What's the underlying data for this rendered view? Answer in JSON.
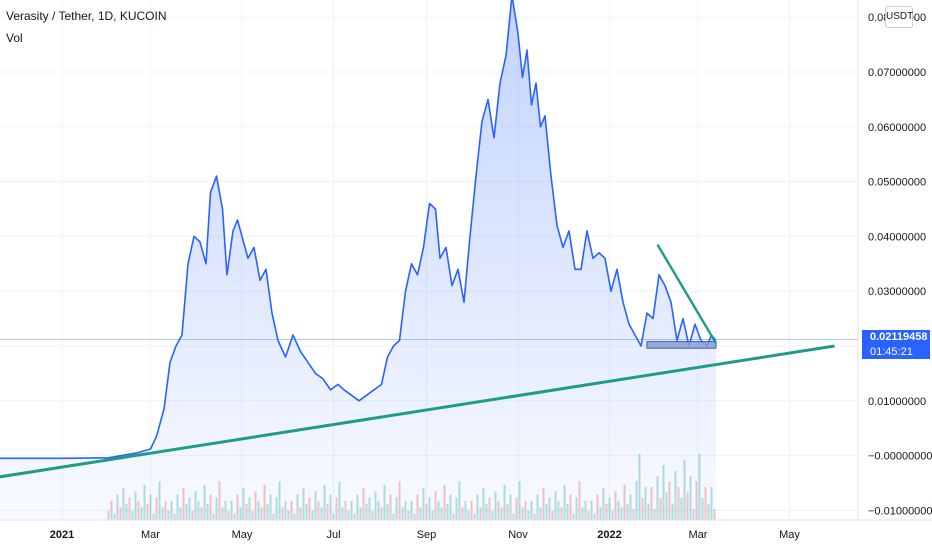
{
  "header": {
    "title": "Verasity / Tether, 1D, KUCOIN",
    "indicator": "Vol"
  },
  "price_axis": {
    "currency": "USDT",
    "current_price": "0.02119458",
    "countdown": "01:45:21"
  },
  "colors": {
    "line": "#2962ff",
    "area": "#2962ff",
    "trendline": "#1e9c86",
    "vol_up": "#26a69a",
    "vol_down": "#ef5350",
    "price_tag": "#2962ff",
    "support_box": "#8a9fd6"
  },
  "chart_data": {
    "type": "area",
    "title": "Verasity / Tether, 1D, KUCOIN",
    "xlabel": "",
    "ylabel": "",
    "ylim": [
      -0.0125,
      0.0845
    ],
    "grid": true,
    "x_ticks": [
      "2021",
      "Mar",
      "May",
      "Jul",
      "Sep",
      "Nov",
      "2022",
      "Mar",
      "May"
    ],
    "x_tick_dates": [
      "2021-01-01",
      "2021-03-01",
      "2021-05-01",
      "2021-07-01",
      "2021-09-01",
      "2021-11-01",
      "2022-01-01",
      "2022-03-01",
      "2022-05-01"
    ],
    "y_ticks": [
      0.08,
      0.07,
      0.06,
      0.05,
      0.04,
      0.03,
      0.02,
      0.01,
      0.0,
      -0.01
    ],
    "y_tick_labels": [
      "0.08000000",
      "0.07000000",
      "0.06000000",
      "0.05000000",
      "0.04000000",
      "0.03000000",
      "0.02000000",
      "0.01000000",
      "−0.00000000",
      "−0.01000000"
    ],
    "series": [
      {
        "x": [
          "2020-11-06",
          "2020-12-01",
          "2021-01-01",
          "2021-02-01",
          "2021-02-20",
          "2021-03-01",
          "2021-03-05",
          "2021-03-10",
          "2021-03-14",
          "2021-03-18",
          "2021-03-22",
          "2021-03-26",
          "2021-03-30",
          "2021-04-03",
          "2021-04-07",
          "2021-04-10",
          "2021-04-14",
          "2021-04-18",
          "2021-04-21",
          "2021-04-25",
          "2021-04-28",
          "2021-05-01",
          "2021-05-05",
          "2021-05-09",
          "2021-05-13",
          "2021-05-17",
          "2021-05-21",
          "2021-05-25",
          "2021-05-30",
          "2021-06-04",
          "2021-06-09",
          "2021-06-14",
          "2021-06-19",
          "2021-06-24",
          "2021-06-29",
          "2021-07-04",
          "2021-07-08",
          "2021-07-13",
          "2021-07-18",
          "2021-07-23",
          "2021-07-28",
          "2021-08-02",
          "2021-08-06",
          "2021-08-10",
          "2021-08-14",
          "2021-08-18",
          "2021-08-22",
          "2021-08-26",
          "2021-08-30",
          "2021-09-03",
          "2021-09-07",
          "2021-09-10",
          "2021-09-14",
          "2021-09-18",
          "2021-09-22",
          "2021-09-26",
          "2021-09-30",
          "2021-10-04",
          "2021-10-08",
          "2021-10-12",
          "2021-10-16",
          "2021-10-20",
          "2021-10-24",
          "2021-10-28",
          "2021-11-01",
          "2021-11-04",
          "2021-11-07",
          "2021-11-10",
          "2021-11-13",
          "2021-11-16",
          "2021-11-19",
          "2021-11-23",
          "2021-11-27",
          "2021-12-01",
          "2021-12-05",
          "2021-12-09",
          "2021-12-13",
          "2021-12-17",
          "2021-12-21",
          "2021-12-25",
          "2021-12-29",
          "2022-01-02",
          "2022-01-06",
          "2022-01-10",
          "2022-01-14",
          "2022-01-18",
          "2022-01-22",
          "2022-01-26",
          "2022-01-30",
          "2022-02-03",
          "2022-02-07",
          "2022-02-11",
          "2022-02-15",
          "2022-02-19",
          "2022-02-23",
          "2022-02-27",
          "2022-03-03",
          "2022-03-07",
          "2022-03-10",
          "2022-03-13"
        ],
        "y": [
          -0.0005,
          -0.0005,
          -0.0005,
          -0.0004,
          0.0005,
          0.0012,
          0.0035,
          0.0085,
          0.017,
          0.02,
          0.022,
          0.035,
          0.04,
          0.039,
          0.035,
          0.048,
          0.051,
          0.045,
          0.033,
          0.041,
          0.043,
          0.04,
          0.036,
          0.038,
          0.032,
          0.034,
          0.026,
          0.021,
          0.018,
          0.022,
          0.019,
          0.017,
          0.015,
          0.014,
          0.012,
          0.013,
          0.012,
          0.011,
          0.01,
          0.011,
          0.012,
          0.013,
          0.018,
          0.02,
          0.021,
          0.03,
          0.035,
          0.033,
          0.038,
          0.046,
          0.045,
          0.036,
          0.038,
          0.031,
          0.034,
          0.028,
          0.04,
          0.051,
          0.061,
          0.065,
          0.058,
          0.068,
          0.073,
          0.084,
          0.077,
          0.069,
          0.074,
          0.064,
          0.068,
          0.06,
          0.062,
          0.051,
          0.042,
          0.038,
          0.041,
          0.034,
          0.034,
          0.041,
          0.036,
          0.037,
          0.036,
          0.03,
          0.034,
          0.028,
          0.024,
          0.022,
          0.02,
          0.026,
          0.025,
          0.033,
          0.031,
          0.028,
          0.021,
          0.025,
          0.02,
          0.024,
          0.021,
          0.02,
          0.022,
          0.021
        ]
      }
    ],
    "trendlines": [
      {
        "name": "support",
        "from": {
          "x": "2020-11-06",
          "y": -0.0045
        },
        "to": {
          "x": "2022-05-31",
          "y": 0.02
        }
      },
      {
        "name": "resistance",
        "from": {
          "x": "2022-02-02",
          "y": 0.0385
        },
        "to": {
          "x": "2022-03-13",
          "y": 0.0205
        }
      }
    ],
    "support_zone": {
      "x0": "2022-01-26",
      "x1": "2022-03-13",
      "y0": 0.0196,
      "y1": 0.0208
    },
    "current_price": 0.02119458,
    "volume": {
      "start": "2021-02-01",
      "end": "2022-03-13",
      "step_days": 2,
      "pattern": [
        3,
        6,
        2,
        8,
        4,
        10,
        5,
        7,
        3,
        9,
        6,
        4,
        11,
        5,
        8,
        2,
        7,
        12,
        4,
        6
      ]
    }
  }
}
